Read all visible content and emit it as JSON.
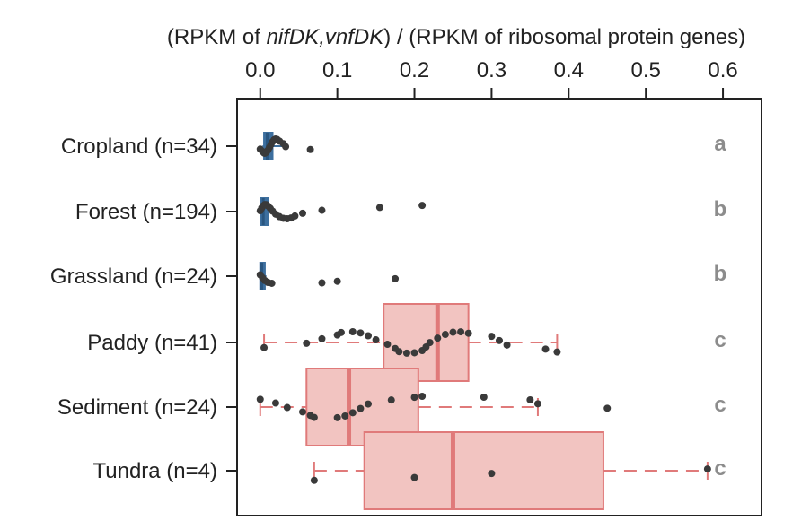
{
  "chart_data": {
    "type": "box",
    "orientation": "horizontal",
    "title_parts": [
      {
        "text": "(RPKM of ",
        "italic": false
      },
      {
        "text": "nifDK,vnfDK",
        "italic": true
      },
      {
        "text": ") / (RPKM of ribosomal protein genes)",
        "italic": false
      }
    ],
    "xlim": [
      -0.03,
      0.65
    ],
    "xticks": [
      0.0,
      0.1,
      0.2,
      0.3,
      0.4,
      0.5,
      0.6
    ],
    "xtick_labels": [
      "0.0",
      "0.1",
      "0.2",
      "0.3",
      "0.4",
      "0.5",
      "0.6"
    ],
    "axis_position": "top",
    "grid": false,
    "colors": {
      "low_group": "#3d6f9e",
      "high_group": "#e07a7a",
      "high_fill": "#f2c4c1",
      "points": "#3a3a3a",
      "letters": "#8c8c8c"
    },
    "categories": [
      "Cropland (n=34)",
      "Forest (n=194)",
      "Grassland (n=24)",
      "Paddy (n=41)",
      "Sediment (n=24)",
      "Tundra (n=4)"
    ],
    "significance_letters": [
      "a",
      "b",
      "b",
      "c",
      "c",
      "c"
    ],
    "boxes": [
      {
        "min": 0.003,
        "q1": 0.005,
        "median": 0.009,
        "q3": 0.016,
        "max": 0.035,
        "color": "low"
      },
      {
        "min": 0.0,
        "q1": 0.001,
        "median": 0.004,
        "q3": 0.01,
        "max": 0.02,
        "color": "low"
      },
      {
        "min": 0.0,
        "q1": 0.0,
        "median": 0.002,
        "q3": 0.006,
        "max": 0.008,
        "color": "low"
      },
      {
        "min": 0.005,
        "q1": 0.16,
        "median": 0.23,
        "q3": 0.27,
        "max": 0.385,
        "color": "high"
      },
      {
        "min": 0.0,
        "q1": 0.06,
        "median": 0.115,
        "q3": 0.205,
        "max": 0.36,
        "color": "high"
      },
      {
        "min": 0.07,
        "q1": 0.135,
        "median": 0.25,
        "q3": 0.445,
        "max": 0.58,
        "color": "high"
      }
    ],
    "points": [
      [
        0.0,
        0.003,
        0.005,
        0.006,
        0.008,
        0.01,
        0.012,
        0.014,
        0.016,
        0.018,
        0.02,
        0.022,
        0.025,
        0.03,
        0.033,
        0.065
      ],
      [
        0.0,
        0.002,
        0.004,
        0.006,
        0.008,
        0.01,
        0.013,
        0.016,
        0.02,
        0.025,
        0.03,
        0.035,
        0.04,
        0.045,
        0.055,
        0.08,
        0.155,
        0.21
      ],
      [
        0.0,
        0.003,
        0.006,
        0.01,
        0.015,
        0.08,
        0.1,
        0.175
      ],
      [
        0.005,
        0.06,
        0.08,
        0.1,
        0.105,
        0.12,
        0.13,
        0.14,
        0.15,
        0.165,
        0.175,
        0.18,
        0.19,
        0.2,
        0.21,
        0.215,
        0.22,
        0.23,
        0.24,
        0.25,
        0.26,
        0.27,
        0.3,
        0.31,
        0.32,
        0.37,
        0.385
      ],
      [
        0.0,
        0.02,
        0.035,
        0.055,
        0.065,
        0.07,
        0.1,
        0.11,
        0.12,
        0.13,
        0.14,
        0.17,
        0.2,
        0.21,
        0.29,
        0.35,
        0.36,
        0.45
      ],
      [
        0.07,
        0.2,
        0.3,
        0.58
      ]
    ]
  }
}
